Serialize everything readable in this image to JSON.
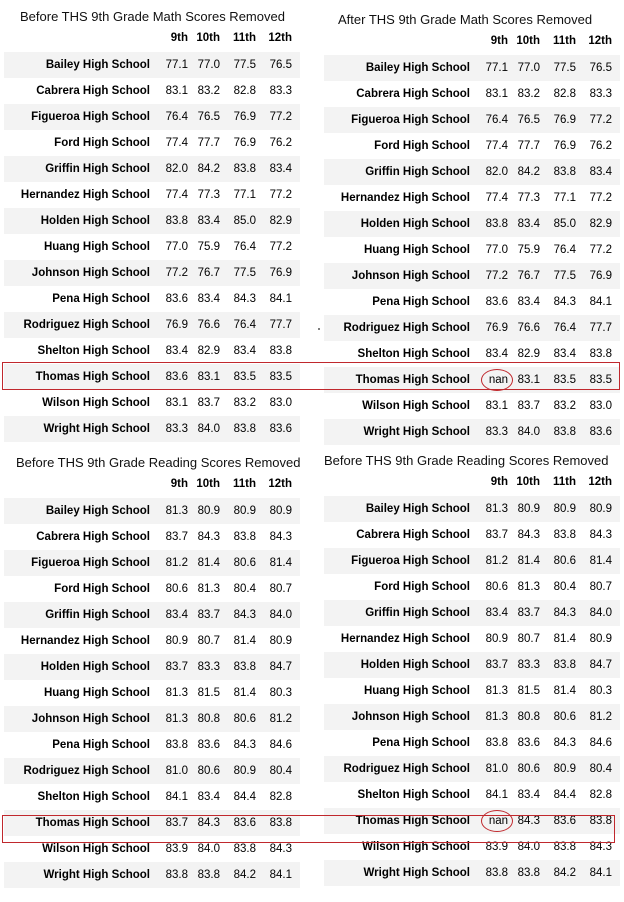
{
  "columns": [
    "9th",
    "10th",
    "11th",
    "12th"
  ],
  "panels": [
    {
      "id": "math-before",
      "title": "Before THS 9th Grade Math Scores Removed",
      "rows": [
        [
          "Bailey High School",
          "77.1",
          "77.0",
          "77.5",
          "76.5"
        ],
        [
          "Cabrera High School",
          "83.1",
          "83.2",
          "82.8",
          "83.3"
        ],
        [
          "Figueroa High School",
          "76.4",
          "76.5",
          "76.9",
          "77.2"
        ],
        [
          "Ford High School",
          "77.4",
          "77.7",
          "76.9",
          "76.2"
        ],
        [
          "Griffin High School",
          "82.0",
          "84.2",
          "83.8",
          "83.4"
        ],
        [
          "Hernandez High School",
          "77.4",
          "77.3",
          "77.1",
          "77.2"
        ],
        [
          "Holden High School",
          "83.8",
          "83.4",
          "85.0",
          "82.9"
        ],
        [
          "Huang High School",
          "77.0",
          "75.9",
          "76.4",
          "77.2"
        ],
        [
          "Johnson High School",
          "77.2",
          "76.7",
          "77.5",
          "76.9"
        ],
        [
          "Pena High School",
          "83.6",
          "83.4",
          "84.3",
          "84.1"
        ],
        [
          "Rodriguez High School",
          "76.9",
          "76.6",
          "76.4",
          "77.7"
        ],
        [
          "Shelton High School",
          "83.4",
          "82.9",
          "83.4",
          "83.8"
        ],
        [
          "Thomas High School",
          "83.6",
          "83.1",
          "83.5",
          "83.5"
        ],
        [
          "Wilson High School",
          "83.1",
          "83.7",
          "83.2",
          "83.0"
        ],
        [
          "Wright High School",
          "83.3",
          "84.0",
          "83.8",
          "83.6"
        ]
      ]
    },
    {
      "id": "math-after",
      "title": "After THS 9th Grade Math Scores Removed",
      "rows": [
        [
          "Bailey High School",
          "77.1",
          "77.0",
          "77.5",
          "76.5"
        ],
        [
          "Cabrera High School",
          "83.1",
          "83.2",
          "82.8",
          "83.3"
        ],
        [
          "Figueroa High School",
          "76.4",
          "76.5",
          "76.9",
          "77.2"
        ],
        [
          "Ford High School",
          "77.4",
          "77.7",
          "76.9",
          "76.2"
        ],
        [
          "Griffin High School",
          "82.0",
          "84.2",
          "83.8",
          "83.4"
        ],
        [
          "Hernandez High School",
          "77.4",
          "77.3",
          "77.1",
          "77.2"
        ],
        [
          "Holden High School",
          "83.8",
          "83.4",
          "85.0",
          "82.9"
        ],
        [
          "Huang High School",
          "77.0",
          "75.9",
          "76.4",
          "77.2"
        ],
        [
          "Johnson High School",
          "77.2",
          "76.7",
          "77.5",
          "76.9"
        ],
        [
          "Pena High School",
          "83.6",
          "83.4",
          "84.3",
          "84.1"
        ],
        [
          "Rodriguez High School",
          "76.9",
          "76.6",
          "76.4",
          "77.7"
        ],
        [
          "Shelton High School",
          "83.4",
          "82.9",
          "83.4",
          "83.8"
        ],
        [
          "Thomas High School",
          "nan",
          "83.1",
          "83.5",
          "83.5"
        ],
        [
          "Wilson High School",
          "83.1",
          "83.7",
          "83.2",
          "83.0"
        ],
        [
          "Wright High School",
          "83.3",
          "84.0",
          "83.8",
          "83.6"
        ]
      ]
    },
    {
      "id": "reading-before",
      "title": "Before THS 9th Grade Reading Scores Removed",
      "rows": [
        [
          "Bailey High School",
          "81.3",
          "80.9",
          "80.9",
          "80.9"
        ],
        [
          "Cabrera High School",
          "83.7",
          "84.3",
          "83.8",
          "84.3"
        ],
        [
          "Figueroa High School",
          "81.2",
          "81.4",
          "80.6",
          "81.4"
        ],
        [
          "Ford High School",
          "80.6",
          "81.3",
          "80.4",
          "80.7"
        ],
        [
          "Griffin High School",
          "83.4",
          "83.7",
          "84.3",
          "84.0"
        ],
        [
          "Hernandez High School",
          "80.9",
          "80.7",
          "81.4",
          "80.9"
        ],
        [
          "Holden High School",
          "83.7",
          "83.3",
          "83.8",
          "84.7"
        ],
        [
          "Huang High School",
          "81.3",
          "81.5",
          "81.4",
          "80.3"
        ],
        [
          "Johnson High School",
          "81.3",
          "80.8",
          "80.6",
          "81.2"
        ],
        [
          "Pena High School",
          "83.8",
          "83.6",
          "84.3",
          "84.6"
        ],
        [
          "Rodriguez High School",
          "81.0",
          "80.6",
          "80.9",
          "80.4"
        ],
        [
          "Shelton High School",
          "84.1",
          "83.4",
          "84.4",
          "82.8"
        ],
        [
          "Thomas High School",
          "83.7",
          "84.3",
          "83.6",
          "83.8"
        ],
        [
          "Wilson High School",
          "83.9",
          "84.0",
          "83.8",
          "84.3"
        ],
        [
          "Wright High School",
          "83.8",
          "83.8",
          "84.2",
          "84.1"
        ]
      ]
    },
    {
      "id": "reading-after",
      "title": "Before THS 9th Grade Reading Scores Removed",
      "rows": [
        [
          "Bailey High School",
          "81.3",
          "80.9",
          "80.9",
          "80.9"
        ],
        [
          "Cabrera High School",
          "83.7",
          "84.3",
          "83.8",
          "84.3"
        ],
        [
          "Figueroa High School",
          "81.2",
          "81.4",
          "80.6",
          "81.4"
        ],
        [
          "Ford High School",
          "80.6",
          "81.3",
          "80.4",
          "80.7"
        ],
        [
          "Griffin High School",
          "83.4",
          "83.7",
          "84.3",
          "84.0"
        ],
        [
          "Hernandez High School",
          "80.9",
          "80.7",
          "81.4",
          "80.9"
        ],
        [
          "Holden High School",
          "83.7",
          "83.3",
          "83.8",
          "84.7"
        ],
        [
          "Huang High School",
          "81.3",
          "81.5",
          "81.4",
          "80.3"
        ],
        [
          "Johnson High School",
          "81.3",
          "80.8",
          "80.6",
          "81.2"
        ],
        [
          "Pena High School",
          "83.8",
          "83.6",
          "84.3",
          "84.6"
        ],
        [
          "Rodriguez High School",
          "81.0",
          "80.6",
          "80.9",
          "80.4"
        ],
        [
          "Shelton High School",
          "84.1",
          "83.4",
          "84.4",
          "82.8"
        ],
        [
          "Thomas High School",
          "nan",
          "84.3",
          "83.6",
          "83.8"
        ],
        [
          "Wilson High School",
          "83.9",
          "84.0",
          "83.8",
          "84.3"
        ],
        [
          "Wright High School",
          "83.8",
          "83.8",
          "84.2",
          "84.1"
        ]
      ]
    }
  ],
  "highlight_row": "Thomas High School",
  "colors": {
    "highlight": "#c0282d",
    "stripe": "#f3f3f3"
  }
}
